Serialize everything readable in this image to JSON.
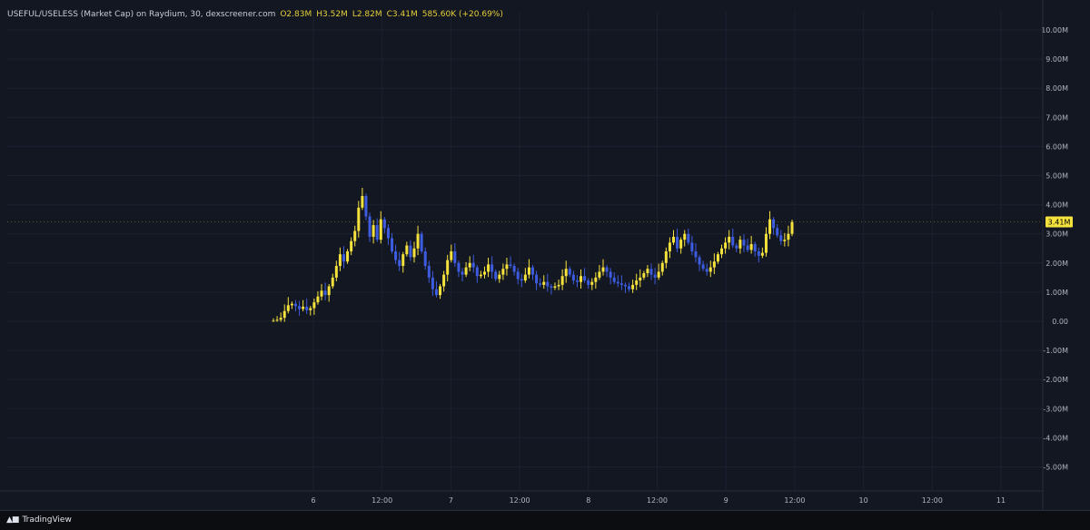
{
  "header": {
    "symbol": "USEFUL/USELESS (Market Cap) on Raydium, 30, dexscreener.com",
    "open": "O2.83M",
    "high": "H3.52M",
    "low": "L2.82M",
    "close": "C3.41M",
    "change": "585.60K (+20.69%)"
  },
  "footer": {
    "brand": "TradingView"
  },
  "colors": {
    "up": "#f5e23c",
    "down": "#3d5ce0",
    "last_price_bg": "#f5e23c"
  },
  "chart_data": {
    "type": "candlestick",
    "ylim": [
      -5.7,
      10.4
    ],
    "y_unit": "M",
    "price_ticks": [
      "10.00M",
      "9.00M",
      "8.00M",
      "7.00M",
      "6.00M",
      "5.00M",
      "4.00M",
      "3.00M",
      "2.00M",
      "1.00M",
      "0.00",
      "-1.00M",
      "-2.00M",
      "-3.00M",
      "-4.00M",
      "-5.00M"
    ],
    "time_ticks": [
      "6",
      "12:00",
      "7",
      "12:00",
      "8",
      "12:00",
      "9",
      "12:00",
      "10",
      "12:00",
      "11"
    ],
    "last_price_label": "3.41M",
    "last_price": 3.41,
    "closes": [
      0.02,
      0.05,
      0.12,
      0.35,
      0.55,
      0.6,
      0.52,
      0.42,
      0.5,
      0.38,
      0.45,
      0.65,
      0.85,
      1.05,
      0.9,
      1.2,
      1.5,
      1.9,
      2.3,
      2.05,
      2.4,
      2.75,
      3.1,
      3.9,
      4.3,
      3.6,
      2.9,
      3.3,
      2.8,
      3.5,
      3.2,
      2.85,
      2.4,
      2.1,
      1.9,
      2.3,
      2.6,
      2.2,
      2.5,
      3.0,
      2.4,
      1.9,
      1.5,
      1.1,
      0.9,
      1.2,
      1.6,
      2.1,
      2.4,
      2.0,
      1.7,
      1.6,
      1.85,
      2.0,
      1.85,
      1.55,
      1.6,
      1.7,
      1.95,
      1.7,
      1.45,
      1.6,
      1.8,
      1.95,
      1.9,
      1.7,
      1.45,
      1.4,
      1.6,
      1.85,
      1.6,
      1.3,
      1.25,
      1.35,
      1.2,
      1.15,
      1.2,
      1.25,
      1.55,
      1.8,
      1.6,
      1.4,
      1.35,
      1.55,
      1.4,
      1.25,
      1.35,
      1.5,
      1.7,
      1.85,
      1.7,
      1.5,
      1.35,
      1.3,
      1.25,
      1.2,
      1.1,
      1.25,
      1.4,
      1.5,
      1.65,
      1.8,
      1.6,
      1.5,
      1.7,
      2.0,
      2.4,
      2.7,
      2.9,
      2.5,
      2.8,
      3.0,
      2.7,
      2.4,
      2.2,
      1.95,
      1.8,
      1.7,
      1.85,
      2.05,
      2.3,
      2.5,
      2.7,
      2.9,
      2.6,
      2.5,
      2.8,
      2.6,
      2.45,
      2.65,
      2.4,
      2.25,
      2.35,
      3.0,
      3.5,
      3.2,
      2.95,
      2.75,
      2.8,
      3.0,
      3.41
    ]
  }
}
